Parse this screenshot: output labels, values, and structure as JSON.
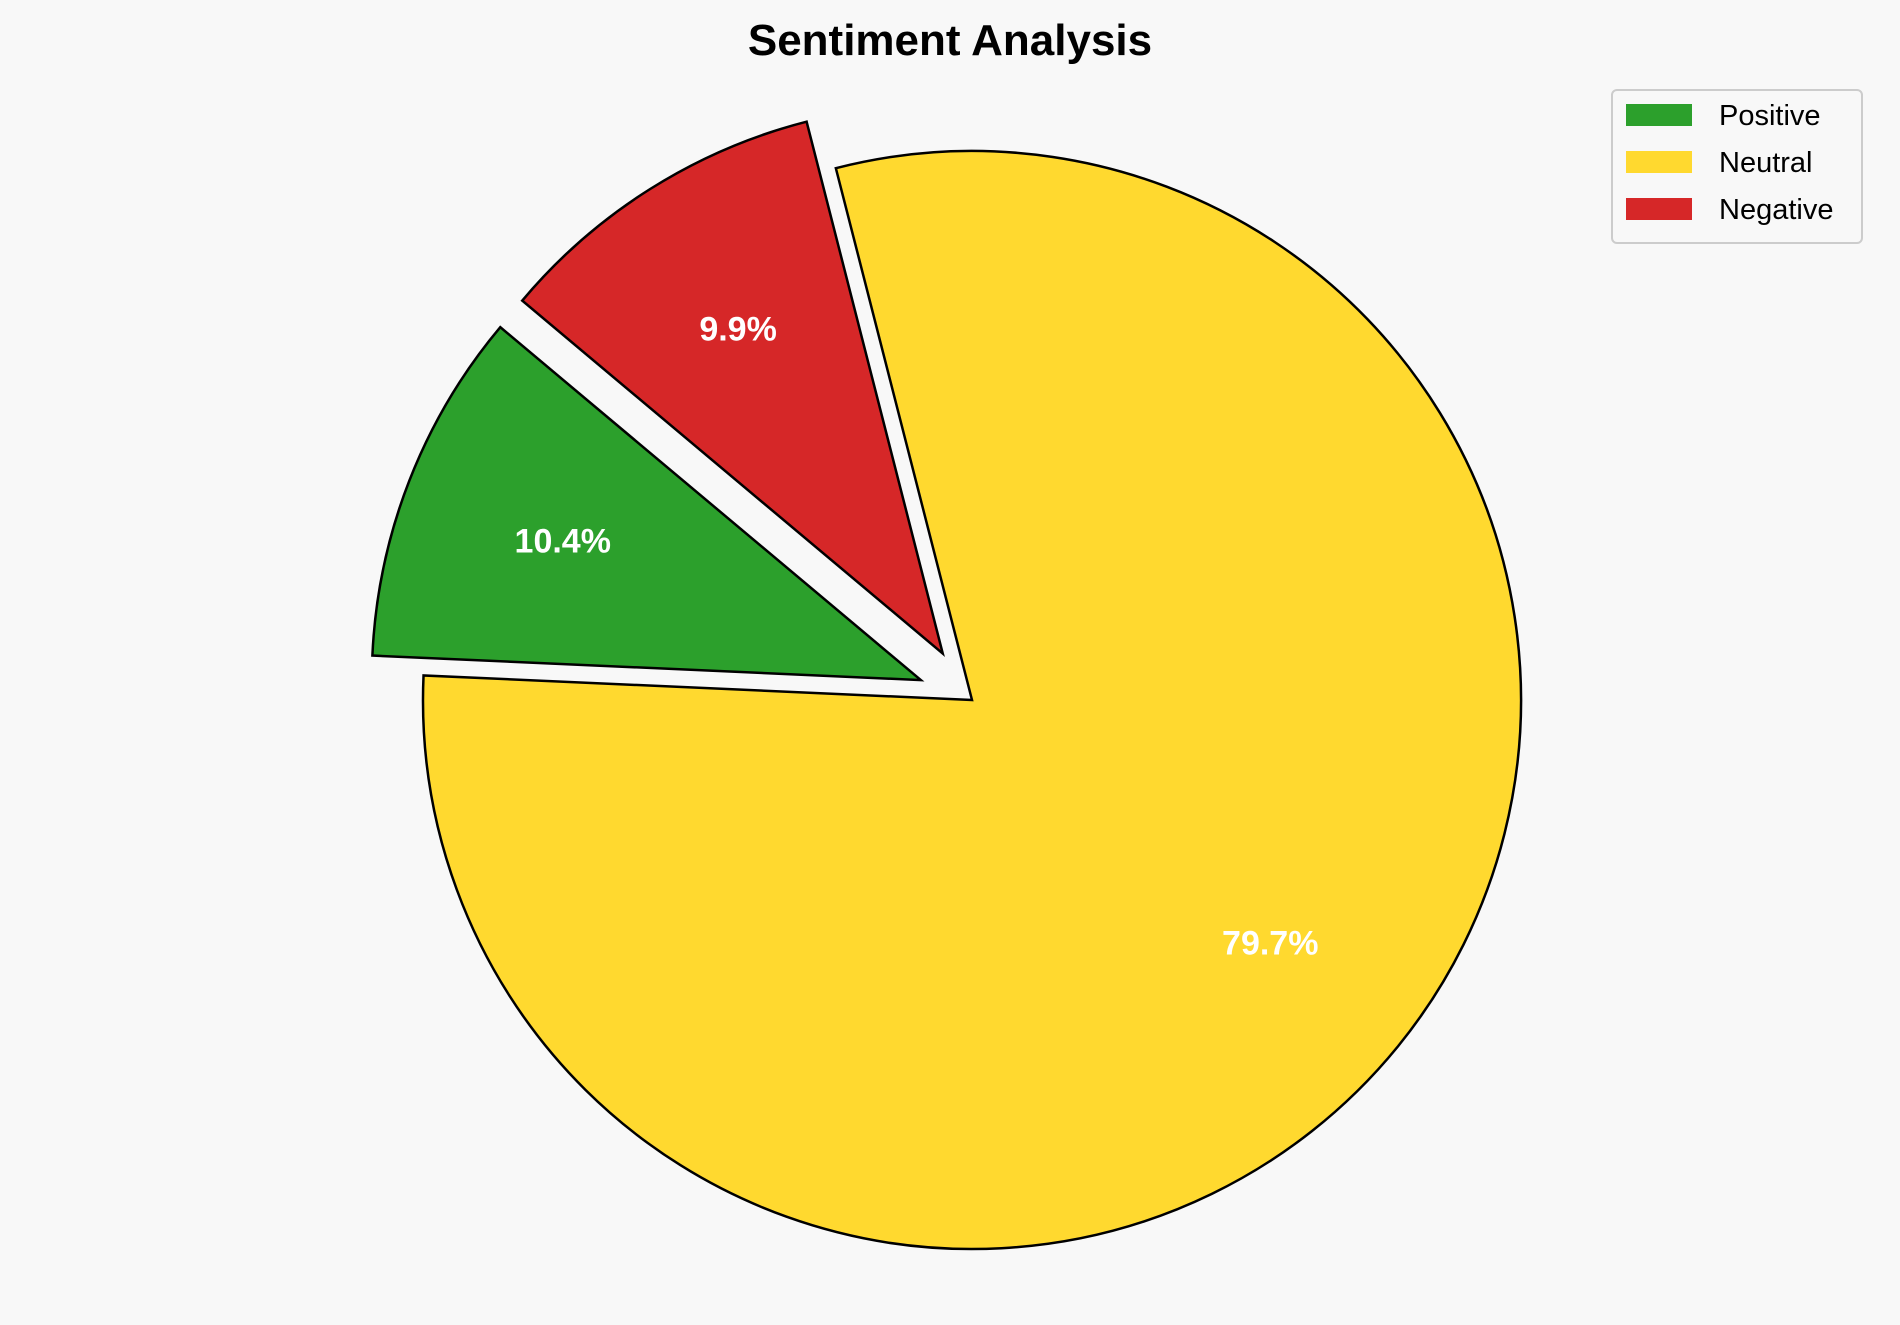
{
  "chart_data": {
    "type": "pie",
    "title": "Sentiment Analysis",
    "categories": [
      "Positive",
      "Neutral",
      "Negative"
    ],
    "values": [
      10.4,
      79.7,
      9.9
    ],
    "labels": [
      "10.4%",
      "79.7%",
      "9.9%"
    ],
    "colors": [
      "#2ca02c",
      "#ffd92f",
      "#d62728"
    ],
    "explode": [
      0.1,
      0,
      0.1
    ],
    "start_angle": 140,
    "counterclockwise": true,
    "edge_color": "#000000",
    "legend": {
      "placement": "top-right",
      "entries": [
        "Positive",
        "Neutral",
        "Negative"
      ]
    },
    "background": "#f8f8f8"
  }
}
